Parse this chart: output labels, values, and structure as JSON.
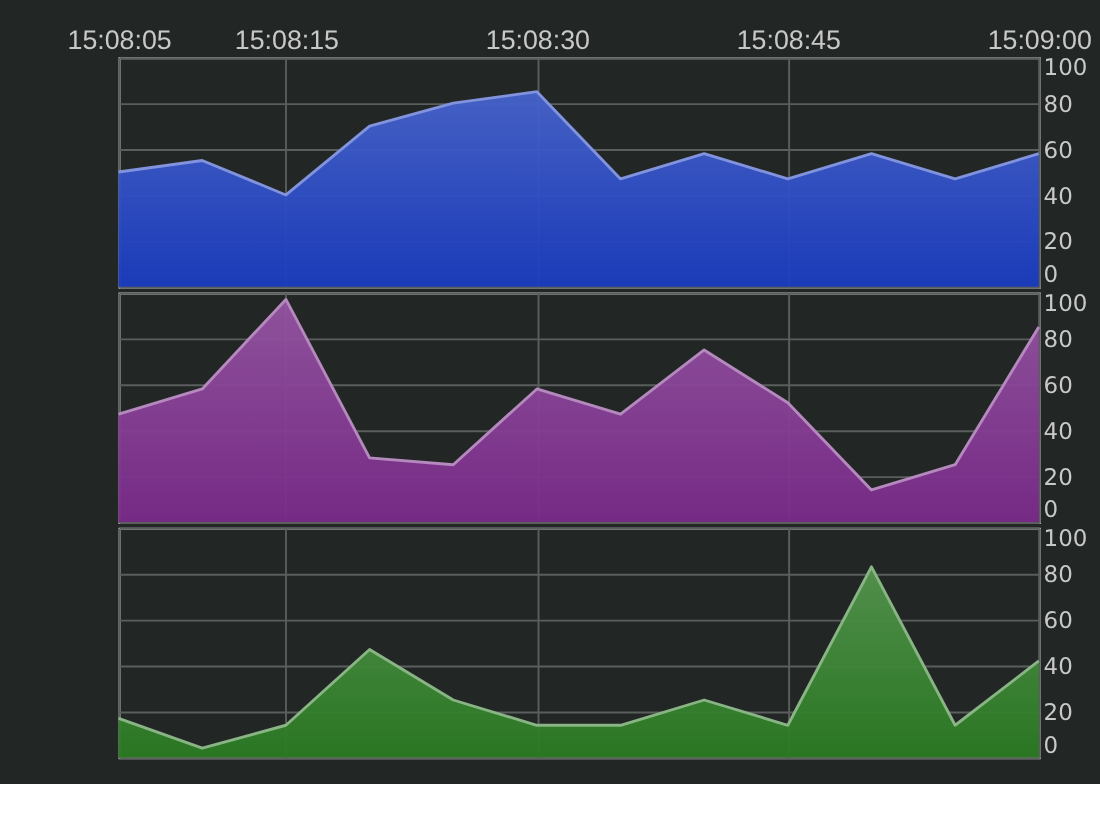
{
  "chart_data": [
    {
      "type": "area",
      "x": [
        15.134722,
        15.136111,
        15.1375,
        15.138889,
        15.140278,
        15.141667,
        15.143056,
        15.144444,
        15.145833,
        15.147222,
        15.148611,
        15.15
      ],
      "series": [
        {
          "color": "#1a3cc0",
          "values": [
            50,
            55,
            40,
            70,
            80,
            85,
            47,
            58,
            47,
            58,
            47,
            58
          ]
        }
      ],
      "xlim": [
        15.134722,
        15.15
      ],
      "xticks": [
        {
          "value": 15.134722,
          "label": "15:08:05"
        },
        {
          "value": 15.1375,
          "label": "15:08:15"
        },
        {
          "value": 15.141667,
          "label": "15:08:30"
        },
        {
          "value": 15.145833,
          "label": "15:08:45"
        },
        {
          "value": 15.15,
          "label": "15:09:00"
        }
      ],
      "ylim": [
        0,
        100
      ],
      "yticks": [
        0,
        20,
        40,
        60,
        80,
        100
      ],
      "grid": true
    },
    {
      "type": "area",
      "x": [
        15.134722,
        15.136111,
        15.1375,
        15.138889,
        15.140278,
        15.141667,
        15.143056,
        15.144444,
        15.145833,
        15.147222,
        15.148611,
        15.15
      ],
      "series": [
        {
          "color": "#7a2a8a",
          "values": [
            47,
            58,
            97,
            28,
            25,
            58,
            47,
            75,
            52,
            14,
            25,
            85
          ]
        }
      ],
      "xlim": [
        15.134722,
        15.15
      ],
      "xticks": [
        {
          "value": 15.134722,
          "label": null
        },
        {
          "value": 15.1375,
          "label": null
        },
        {
          "value": 15.141667,
          "label": null
        },
        {
          "value": 15.145833,
          "label": null
        },
        {
          "value": 15.15,
          "label": null
        }
      ],
      "ylim": [
        0,
        100
      ],
      "yticks": [
        0,
        20,
        40,
        60,
        80,
        100
      ],
      "grid": true,
      "tick_labels": "y"
    },
    {
      "type": "area",
      "x": [
        15.134722,
        15.136111,
        15.1375,
        15.138889,
        15.140278,
        15.141667,
        15.143056,
        15.144444,
        15.145833,
        15.147222,
        15.148611,
        15.15
      ],
      "series": [
        {
          "color": "#2a7a22",
          "values": [
            17,
            4,
            14,
            47,
            25,
            14,
            14,
            25,
            14,
            83,
            14,
            42
          ]
        }
      ],
      "xlim": [
        15.134722,
        15.15
      ],
      "xticks": [
        {
          "value": 15.134722,
          "label": null
        },
        {
          "value": 15.1375,
          "label": null
        },
        {
          "value": 15.141667,
          "label": null
        },
        {
          "value": 15.145833,
          "label": null
        },
        {
          "value": 15.15,
          "label": null
        }
      ],
      "ylim": [
        0,
        100
      ],
      "yticks": [
        0,
        20,
        40,
        60,
        80,
        100
      ],
      "grid": true,
      "tick_labels": "y"
    }
  ]
}
